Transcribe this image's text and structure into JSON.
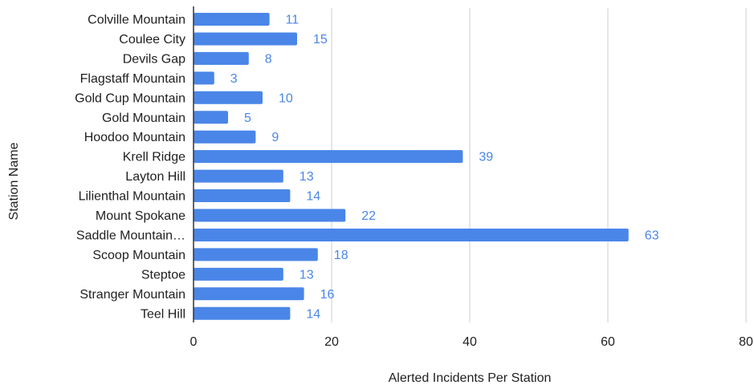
{
  "chart_data": {
    "type": "bar",
    "orientation": "horizontal",
    "categories": [
      "Colville Mountain",
      "Coulee City",
      "Devils Gap",
      "Flagstaff Mountain",
      "Gold Cup Mountain",
      "Gold Mountain",
      "Hoodoo Mountain",
      "Krell Ridge",
      "Layton Hill",
      "Lilienthal Mountain",
      "Mount Spokane",
      "Saddle Mountain…",
      "Scoop Mountain",
      "Steptoe",
      "Stranger Mountain",
      "Teel Hill"
    ],
    "values": [
      11,
      15,
      8,
      3,
      10,
      5,
      9,
      39,
      13,
      14,
      22,
      63,
      18,
      13,
      16,
      14
    ],
    "xlabel": "Alerted Incidents Per Station",
    "ylabel": "Station Name",
    "xlim": [
      0,
      80
    ],
    "xticks": [
      0,
      20,
      40,
      60,
      80
    ],
    "grid": "vertical",
    "data_labels": true,
    "bar_color": "#4a86e8",
    "grid_color": "#cccccc",
    "axis_color": "#333333"
  }
}
